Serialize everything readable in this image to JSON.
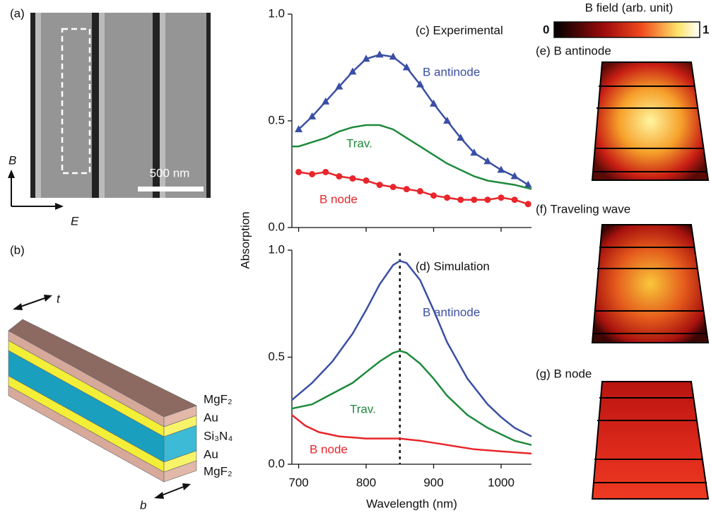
{
  "panels": {
    "a": {
      "label": "(a)",
      "scale_bar": "500 nm",
      "axis_b": "B",
      "axis_e": "E"
    },
    "b": {
      "label": "(b)",
      "t": "t",
      "b": "b",
      "layers": [
        "MgF₂",
        "Au",
        "Si₃N₄",
        "Au",
        "MgF₂"
      ]
    },
    "colorbar": {
      "title": "B field (arb. unit)",
      "min": "0",
      "max": "1"
    },
    "e": {
      "label": "(e) B antinode"
    },
    "f": {
      "label": "(f) Traveling wave"
    },
    "g": {
      "label": "(g) B node"
    }
  },
  "chart_data": [
    {
      "type": "line",
      "title": "(c) Experimental",
      "ylabel": "Absorption",
      "xlim": [
        690,
        1045
      ],
      "xticks": [
        700,
        800,
        900,
        1000
      ],
      "ylim": [
        0,
        1
      ],
      "yticks": [
        {
          "value": 0,
          "label": "0.0"
        },
        {
          "value": 0.5,
          "label": "0.5"
        },
        {
          "value": 1,
          "label": "1.0"
        }
      ],
      "series": [
        {
          "name": "B antinode",
          "color": "#3a4fa3",
          "marker": "triangle",
          "x": [
            700,
            720,
            740,
            760,
            780,
            800,
            820,
            840,
            860,
            880,
            900,
            920,
            940,
            960,
            980,
            1000,
            1020,
            1040
          ],
          "values": [
            0.46,
            0.52,
            0.59,
            0.66,
            0.73,
            0.79,
            0.81,
            0.8,
            0.75,
            0.67,
            0.58,
            0.5,
            0.42,
            0.35,
            0.31,
            0.27,
            0.24,
            0.2
          ]
        },
        {
          "name": "Trav.",
          "color": "#1e8a3c",
          "marker": "none",
          "x": [
            690,
            700,
            720,
            740,
            760,
            780,
            800,
            820,
            840,
            860,
            880,
            900,
            920,
            940,
            960,
            980,
            1000,
            1020,
            1045
          ],
          "values": [
            0.38,
            0.38,
            0.4,
            0.42,
            0.45,
            0.47,
            0.48,
            0.48,
            0.46,
            0.42,
            0.38,
            0.34,
            0.3,
            0.27,
            0.24,
            0.22,
            0.21,
            0.2,
            0.18
          ]
        },
        {
          "name": "B node",
          "color": "#e8262b",
          "marker": "circle",
          "x": [
            700,
            720,
            740,
            760,
            780,
            800,
            820,
            840,
            860,
            880,
            900,
            920,
            940,
            960,
            980,
            1000,
            1020,
            1040
          ],
          "values": [
            0.26,
            0.25,
            0.26,
            0.24,
            0.23,
            0.22,
            0.2,
            0.19,
            0.18,
            0.17,
            0.15,
            0.14,
            0.13,
            0.13,
            0.13,
            0.14,
            0.13,
            0.11
          ]
        }
      ]
    },
    {
      "type": "line",
      "title": "(d) Simulation",
      "xlabel": "Wavelength (nm)",
      "xlim": [
        690,
        1045
      ],
      "xticks": [
        700,
        800,
        900,
        1000
      ],
      "ylim": [
        0,
        1
      ],
      "yticks": [
        {
          "value": 0,
          "label": "0.0"
        },
        {
          "value": 0.5,
          "label": "0.5"
        },
        {
          "value": 1,
          "label": "1.0"
        }
      ],
      "vline": 850,
      "series": [
        {
          "name": "B antinode",
          "color": "#3a4fa3",
          "marker": "none",
          "x": [
            690,
            720,
            750,
            780,
            800,
            820,
            840,
            850,
            860,
            880,
            900,
            920,
            950,
            980,
            1000,
            1020,
            1045
          ],
          "values": [
            0.3,
            0.38,
            0.48,
            0.61,
            0.72,
            0.84,
            0.93,
            0.95,
            0.94,
            0.86,
            0.72,
            0.57,
            0.4,
            0.28,
            0.22,
            0.17,
            0.13
          ]
        },
        {
          "name": "Trav.",
          "color": "#1e8a3c",
          "marker": "none",
          "x": [
            690,
            720,
            750,
            780,
            800,
            820,
            840,
            850,
            860,
            880,
            900,
            920,
            950,
            980,
            1000,
            1020,
            1045
          ],
          "values": [
            0.26,
            0.28,
            0.33,
            0.38,
            0.43,
            0.48,
            0.52,
            0.53,
            0.52,
            0.47,
            0.4,
            0.32,
            0.23,
            0.17,
            0.14,
            0.11,
            0.09
          ]
        },
        {
          "name": "B node",
          "color": "#e8262b",
          "marker": "none",
          "x": [
            690,
            710,
            730,
            760,
            800,
            850,
            880,
            920,
            960,
            1000,
            1045
          ],
          "values": [
            0.23,
            0.18,
            0.15,
            0.13,
            0.12,
            0.12,
            0.11,
            0.09,
            0.07,
            0.06,
            0.05
          ]
        }
      ]
    }
  ]
}
